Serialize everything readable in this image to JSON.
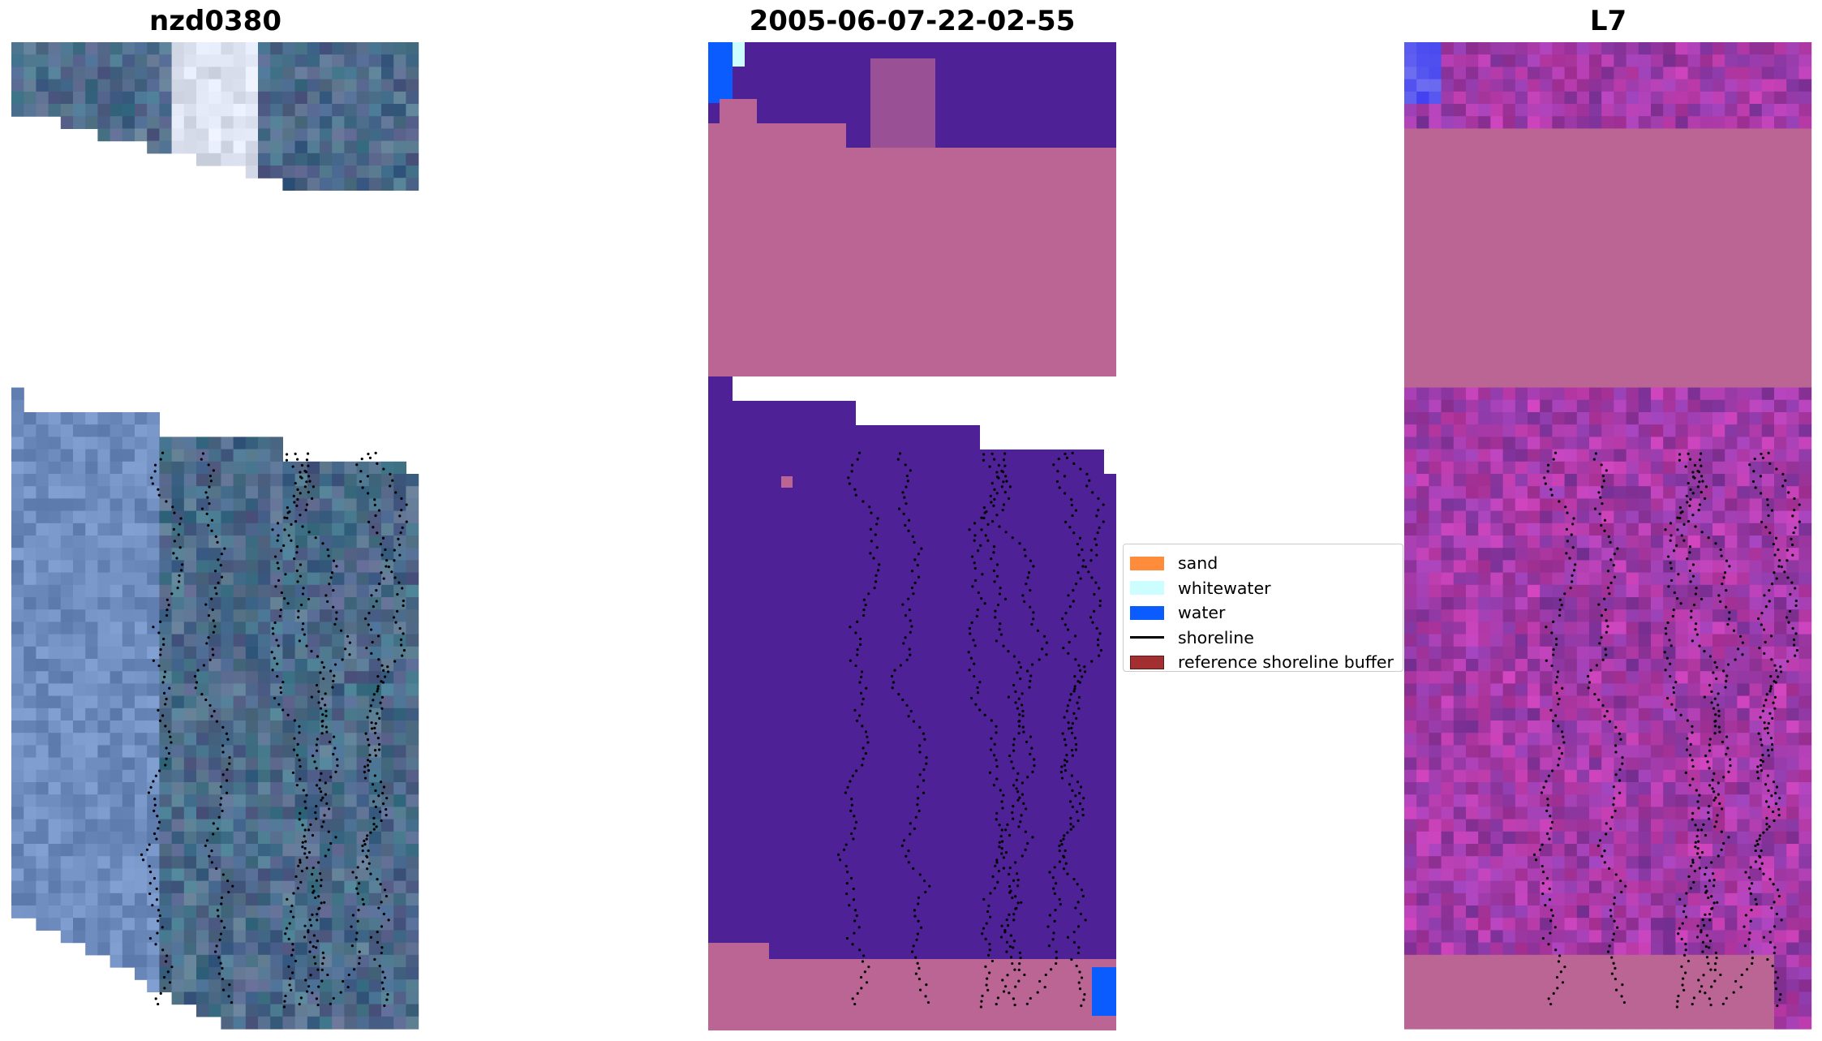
{
  "panels": [
    {
      "title": "nzd0380",
      "kind": "rgb"
    },
    {
      "title": "2005-06-07-22-02-55",
      "kind": "classified"
    },
    {
      "title": "L7",
      "kind": "index"
    }
  ],
  "legend": {
    "items": [
      {
        "label": "sand",
        "color": "#ff8c3a",
        "type": "patch"
      },
      {
        "label": "whitewater",
        "color": "#ccfeff",
        "type": "patch"
      },
      {
        "label": "water",
        "color": "#0a5cff",
        "type": "patch"
      },
      {
        "label": "shoreline",
        "color": "#000000",
        "type": "line"
      },
      {
        "label": "reference shoreline buffer",
        "color": "#a23030",
        "type": "patch"
      }
    ]
  },
  "colors": {
    "classified_dark": "#4f2196",
    "classified_buffer": "#bb6594",
    "classified_water": "#0a5cff",
    "classified_whitewater": "#ccfeff",
    "rgb_base": "#3e5f8a",
    "index_base": "#8a3aa8",
    "index_buffer": "#bb6594"
  }
}
